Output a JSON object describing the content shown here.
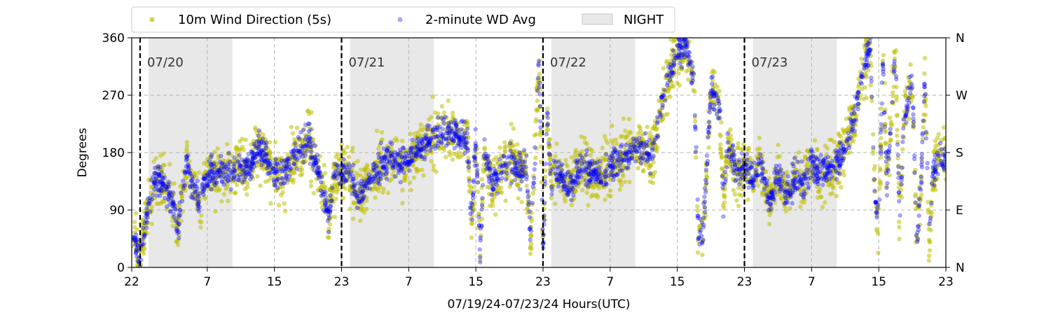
{
  "chart_data": {
    "type": "scatter",
    "xlabel": "07/19/24-07/23/24  Hours(UTC)",
    "ylabel": "Degrees",
    "y_ticks": [
      0,
      90,
      180,
      270,
      360
    ],
    "y_tick_labels": [
      "0",
      "90",
      "180",
      "270",
      "360"
    ],
    "y2_tick_labels": [
      "N",
      "E",
      "S",
      "W",
      "N"
    ],
    "ylim": [
      0,
      360
    ],
    "x_range_hours": [
      0,
      97
    ],
    "x_ticks_hours": [
      0,
      9,
      17,
      25,
      33,
      41,
      49,
      57,
      65,
      73,
      81,
      89,
      97
    ],
    "x_tick_labels": [
      "22",
      "7",
      "15",
      "23",
      "7",
      "15",
      "23",
      "7",
      "15",
      "23",
      "7",
      "15",
      "23"
    ],
    "grid": true,
    "legend_position": "top-center-outside",
    "legend": [
      {
        "label": "10m Wind Direction (5s)",
        "kind": "marker",
        "color": "#bfbf00"
      },
      {
        "label": "2-minute WD Avg",
        "kind": "marker",
        "color": "#0000ff"
      },
      {
        "label": "NIGHT",
        "kind": "patch",
        "color": "#d9d9d9"
      }
    ],
    "day_markers": [
      {
        "hour": 1,
        "label": "07/20"
      },
      {
        "hour": 25,
        "label": "07/21"
      },
      {
        "hour": 49,
        "label": "07/22"
      },
      {
        "hour": 73,
        "label": "07/23"
      }
    ],
    "night_periods": [
      [
        2,
        12
      ],
      [
        26,
        36
      ],
      [
        50,
        60
      ],
      [
        74,
        84
      ]
    ],
    "series": [
      {
        "name": "10m Wind Direction (5s)",
        "color": "#bfbf00",
        "spread": 22,
        "points": [
          [
            0,
            60
          ],
          [
            0.5,
            35
          ],
          [
            1,
            15
          ],
          [
            1.5,
            60
          ],
          [
            2,
            95
          ],
          [
            2.5,
            125
          ],
          [
            3,
            140
          ],
          [
            4,
            125
          ],
          [
            5,
            95
          ],
          [
            5.5,
            60
          ],
          [
            6,
            110
          ],
          [
            6.5,
            165
          ],
          [
            7,
            130
          ],
          [
            8,
            105
          ],
          [
            9,
            145
          ],
          [
            10,
            150
          ],
          [
            11,
            145
          ],
          [
            12,
            150
          ],
          [
            13,
            160
          ],
          [
            14,
            155
          ],
          [
            15,
            185
          ],
          [
            16,
            170
          ],
          [
            17,
            150
          ],
          [
            18,
            145
          ],
          [
            19,
            170
          ],
          [
            20,
            180
          ],
          [
            21,
            200
          ],
          [
            22,
            160
          ],
          [
            23,
            110
          ],
          [
            23.5,
            80
          ],
          [
            24,
            140
          ],
          [
            25,
            150
          ],
          [
            26,
            150
          ],
          [
            27,
            110
          ],
          [
            28,
            130
          ],
          [
            29,
            150
          ],
          [
            30,
            165
          ],
          [
            31,
            170
          ],
          [
            32,
            160
          ],
          [
            33,
            165
          ],
          [
            34,
            185
          ],
          [
            35,
            195
          ],
          [
            36,
            210
          ],
          [
            37,
            215
          ],
          [
            38,
            210
          ],
          [
            39,
            205
          ],
          [
            40,
            200
          ],
          [
            40.5,
            60
          ],
          [
            41,
            210
          ],
          [
            41.5,
            20
          ],
          [
            42,
            180
          ],
          [
            43,
            130
          ],
          [
            44,
            150
          ],
          [
            45,
            170
          ],
          [
            46,
            150
          ],
          [
            47,
            160
          ],
          [
            47.5,
            45
          ],
          [
            48,
            160
          ],
          [
            48.5,
            330
          ],
          [
            49,
            30
          ],
          [
            49.5,
            240
          ],
          [
            50,
            130
          ],
          [
            51,
            150
          ],
          [
            52,
            120
          ],
          [
            53,
            150
          ],
          [
            54,
            155
          ],
          [
            55,
            150
          ],
          [
            56,
            140
          ],
          [
            57,
            160
          ],
          [
            58,
            165
          ],
          [
            59,
            180
          ],
          [
            60,
            185
          ],
          [
            61,
            190
          ],
          [
            62,
            175
          ],
          [
            63,
            250
          ],
          [
            64,
            300
          ],
          [
            65,
            330
          ],
          [
            66,
            350
          ],
          [
            67,
            290
          ],
          [
            67.5,
            60
          ],
          [
            68,
            40
          ],
          [
            69,
            280
          ],
          [
            70,
            250
          ],
          [
            70.5,
            100
          ],
          [
            71,
            200
          ],
          [
            72,
            150
          ],
          [
            73,
            160
          ],
          [
            74,
            140
          ],
          [
            75,
            165
          ],
          [
            76,
            95
          ],
          [
            77,
            145
          ],
          [
            78,
            120
          ],
          [
            79,
            140
          ],
          [
            80,
            130
          ],
          [
            81,
            160
          ],
          [
            82,
            150
          ],
          [
            83,
            150
          ],
          [
            84,
            160
          ],
          [
            85,
            190
          ],
          [
            86,
            230
          ],
          [
            87,
            300
          ],
          [
            88,
            350
          ],
          [
            88.5,
            120
          ],
          [
            89,
            60
          ],
          [
            89.5,
            320
          ],
          [
            90,
            130
          ],
          [
            91,
            350
          ],
          [
            91.5,
            60
          ],
          [
            92,
            230
          ],
          [
            93,
            300
          ],
          [
            93.5,
            40
          ],
          [
            94,
            120
          ],
          [
            94.5,
            300
          ],
          [
            95,
            30
          ],
          [
            95.5,
            150
          ],
          [
            96,
            170
          ],
          [
            97,
            175
          ]
        ]
      },
      {
        "name": "2-minute WD Avg",
        "color": "#0000ff",
        "spread": 12,
        "points": [
          [
            0,
            60
          ],
          [
            0.5,
            35
          ],
          [
            1,
            15
          ],
          [
            1.5,
            60
          ],
          [
            2,
            95
          ],
          [
            2.5,
            125
          ],
          [
            3,
            140
          ],
          [
            4,
            125
          ],
          [
            5,
            95
          ],
          [
            5.5,
            60
          ],
          [
            6,
            110
          ],
          [
            6.5,
            165
          ],
          [
            7,
            130
          ],
          [
            8,
            105
          ],
          [
            9,
            145
          ],
          [
            10,
            150
          ],
          [
            11,
            145
          ],
          [
            12,
            150
          ],
          [
            13,
            160
          ],
          [
            14,
            155
          ],
          [
            15,
            185
          ],
          [
            16,
            170
          ],
          [
            17,
            150
          ],
          [
            18,
            145
          ],
          [
            19,
            170
          ],
          [
            20,
            180
          ],
          [
            21,
            200
          ],
          [
            22,
            160
          ],
          [
            23,
            110
          ],
          [
            23.5,
            80
          ],
          [
            24,
            140
          ],
          [
            25,
            150
          ],
          [
            26,
            150
          ],
          [
            27,
            110
          ],
          [
            28,
            130
          ],
          [
            29,
            150
          ],
          [
            30,
            165
          ],
          [
            31,
            170
          ],
          [
            32,
            160
          ],
          [
            33,
            165
          ],
          [
            34,
            185
          ],
          [
            35,
            195
          ],
          [
            36,
            210
          ],
          [
            37,
            215
          ],
          [
            38,
            210
          ],
          [
            39,
            205
          ],
          [
            40,
            200
          ],
          [
            40.5,
            60
          ],
          [
            41,
            210
          ],
          [
            41.5,
            20
          ],
          [
            42,
            180
          ],
          [
            43,
            130
          ],
          [
            44,
            150
          ],
          [
            45,
            170
          ],
          [
            46,
            150
          ],
          [
            47,
            160
          ],
          [
            47.5,
            45
          ],
          [
            48,
            160
          ],
          [
            48.5,
            330
          ],
          [
            49,
            30
          ],
          [
            49.5,
            240
          ],
          [
            50,
            130
          ],
          [
            51,
            150
          ],
          [
            52,
            120
          ],
          [
            53,
            150
          ],
          [
            54,
            155
          ],
          [
            55,
            150
          ],
          [
            56,
            140
          ],
          [
            57,
            160
          ],
          [
            58,
            165
          ],
          [
            59,
            180
          ],
          [
            60,
            185
          ],
          [
            61,
            190
          ],
          [
            62,
            175
          ],
          [
            63,
            250
          ],
          [
            64,
            300
          ],
          [
            65,
            330
          ],
          [
            66,
            350
          ],
          [
            67,
            290
          ],
          [
            67.5,
            60
          ],
          [
            68,
            40
          ],
          [
            69,
            280
          ],
          [
            70,
            250
          ],
          [
            70.5,
            100
          ],
          [
            71,
            200
          ],
          [
            72,
            150
          ],
          [
            73,
            160
          ],
          [
            74,
            140
          ],
          [
            75,
            165
          ],
          [
            76,
            95
          ],
          [
            77,
            145
          ],
          [
            78,
            120
          ],
          [
            79,
            140
          ],
          [
            80,
            130
          ],
          [
            81,
            160
          ],
          [
            82,
            150
          ],
          [
            83,
            150
          ],
          [
            84,
            160
          ],
          [
            85,
            190
          ],
          [
            86,
            230
          ],
          [
            87,
            300
          ],
          [
            88,
            350
          ],
          [
            88.5,
            120
          ],
          [
            89,
            60
          ],
          [
            89.5,
            320
          ],
          [
            90,
            130
          ],
          [
            91,
            350
          ],
          [
            91.5,
            60
          ],
          [
            92,
            230
          ],
          [
            93,
            300
          ],
          [
            93.5,
            40
          ],
          [
            94,
            120
          ],
          [
            94.5,
            300
          ],
          [
            95,
            30
          ],
          [
            95.5,
            150
          ],
          [
            96,
            170
          ],
          [
            97,
            175
          ]
        ]
      }
    ]
  }
}
